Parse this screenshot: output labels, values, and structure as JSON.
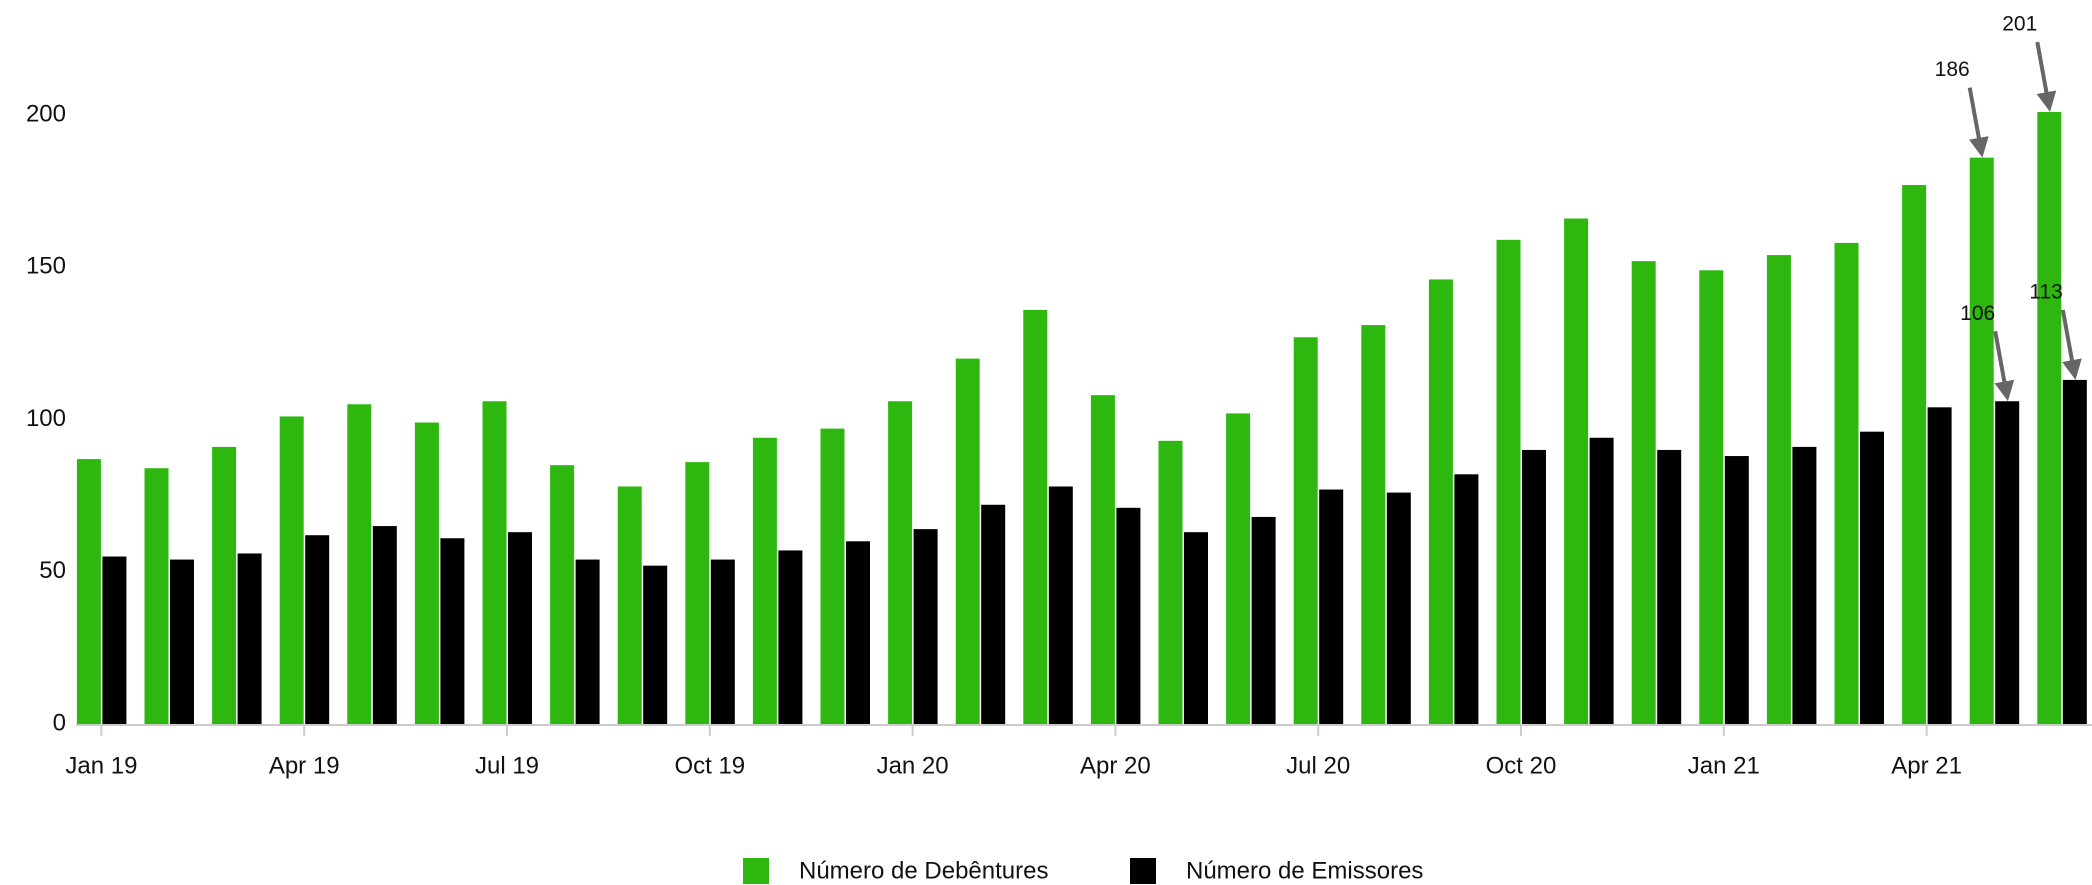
{
  "chart_data": {
    "type": "bar",
    "categories": [
      "Jan 19",
      null,
      null,
      "Apr 19",
      null,
      null,
      "Jul 19",
      null,
      null,
      "Oct 19",
      null,
      null,
      "Jan 20",
      null,
      null,
      "Apr 20",
      null,
      null,
      "Jul 20",
      null,
      null,
      "Oct 20",
      null,
      null,
      "Jan 21",
      null,
      null,
      "Apr 21",
      null,
      null
    ],
    "series": [
      {
        "name": "Número de Debêntures",
        "color": "#2db70f",
        "values": [
          87,
          84,
          91,
          101,
          105,
          99,
          106,
          85,
          78,
          86,
          94,
          97,
          106,
          120,
          136,
          108,
          93,
          102,
          127,
          131,
          146,
          159,
          166,
          152,
          149,
          154,
          158,
          177,
          186,
          201
        ],
        "value_labels": [
          null,
          null,
          null,
          null,
          null,
          null,
          null,
          null,
          null,
          null,
          null,
          null,
          null,
          null,
          null,
          null,
          null,
          null,
          null,
          null,
          null,
          null,
          null,
          null,
          null,
          null,
          null,
          null,
          "186",
          "201"
        ]
      },
      {
        "name": "Número de Emissores",
        "color": "#000000",
        "values": [
          55,
          54,
          56,
          62,
          65,
          61,
          63,
          54,
          52,
          54,
          57,
          60,
          64,
          72,
          78,
          71,
          63,
          68,
          77,
          76,
          82,
          90,
          94,
          90,
          88,
          91,
          96,
          104,
          106,
          113
        ],
        "value_labels": [
          null,
          null,
          null,
          null,
          null,
          null,
          null,
          null,
          null,
          null,
          null,
          null,
          null,
          null,
          null,
          null,
          null,
          null,
          null,
          null,
          null,
          null,
          null,
          null,
          null,
          null,
          null,
          null,
          "106",
          "113"
        ]
      }
    ],
    "ylim": [
      0,
      200
    ],
    "yticks": [
      0,
      50,
      100,
      150,
      200
    ],
    "grid": false,
    "legend": "bottom"
  }
}
